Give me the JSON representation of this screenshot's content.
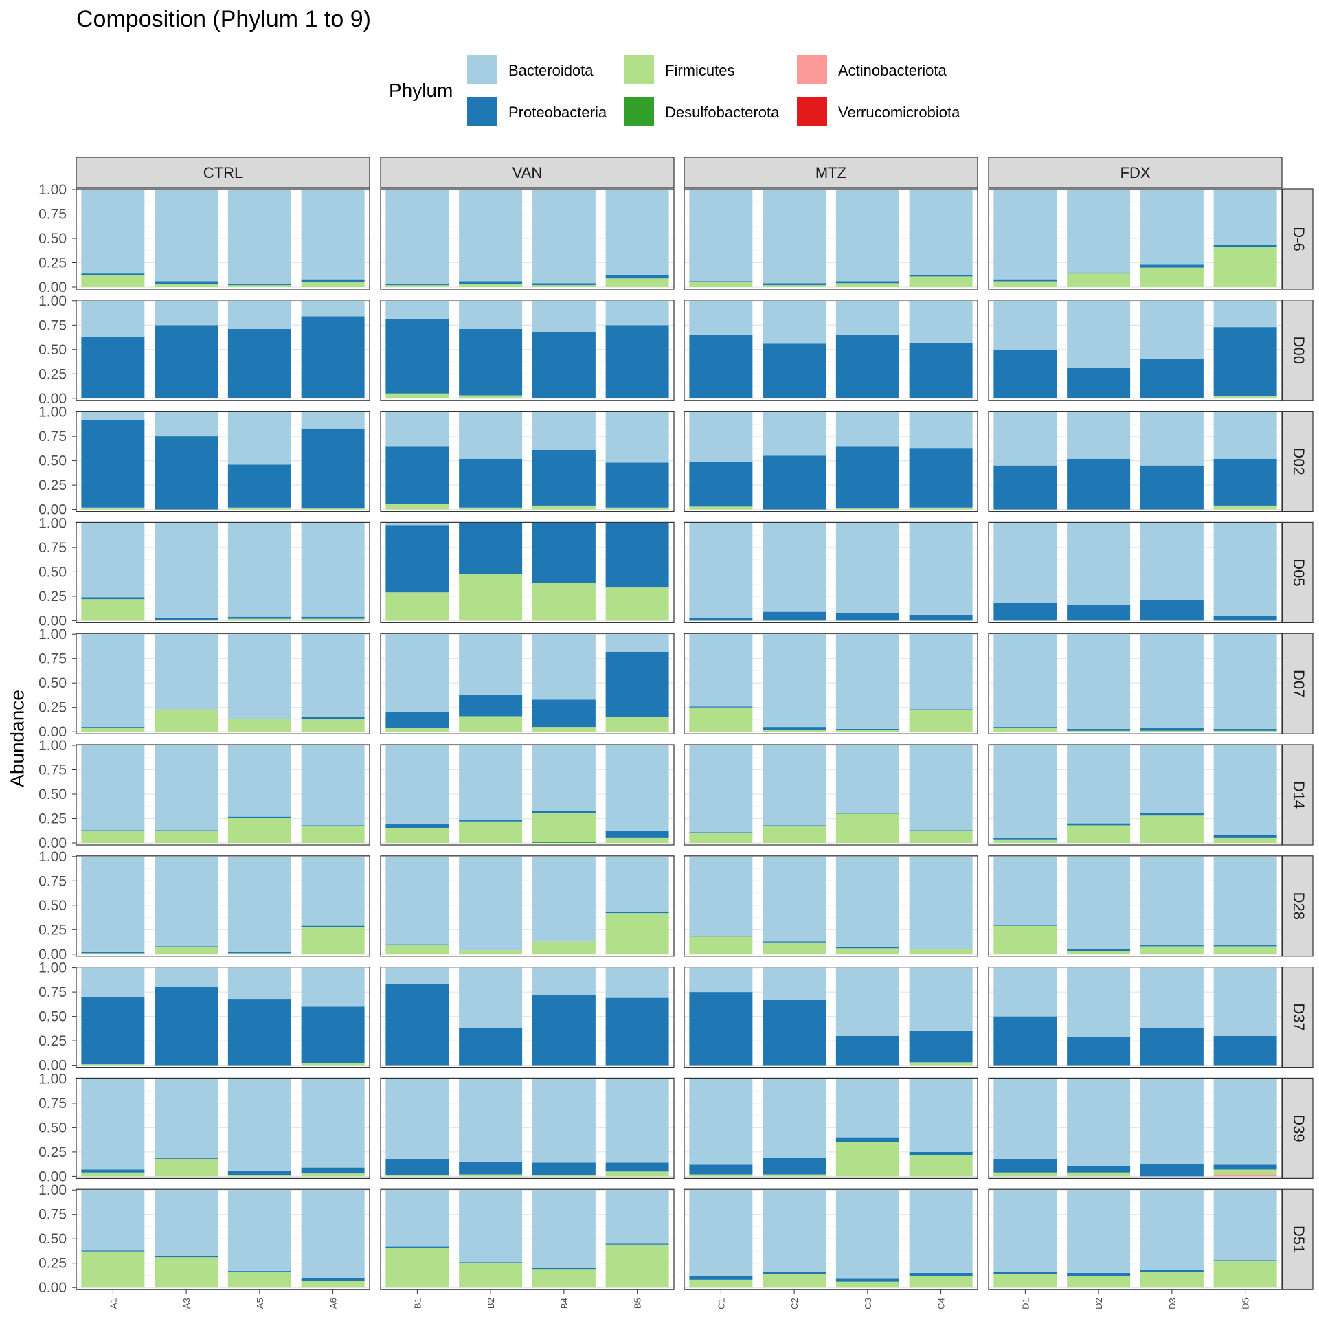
{
  "chart_data": {
    "type": "bar",
    "stacked": true,
    "title": "Composition (Phylum 1 to 9)",
    "xlabel": "",
    "ylabel": "Abundance",
    "ylim": [
      0,
      1
    ],
    "yticks": [
      "0.00",
      "0.25",
      "0.50",
      "0.75",
      "1.00"
    ],
    "grid": true,
    "legend": {
      "title": "Phylum",
      "position": "top",
      "entries": [
        "Bacteroidota",
        "Proteobacteria",
        "Firmicutes",
        "Desulfobacterota",
        "Actinobacteriota",
        "Verrucomicrobiota"
      ]
    },
    "colors": {
      "Bacteroidota": "#a6cee3",
      "Proteobacteria": "#1f78b4",
      "Firmicutes": "#b2df8a",
      "Desulfobacterota": "#33a02c",
      "Actinobacteriota": "#fb9a99",
      "Verrucomicrobiota": "#e31a1c"
    },
    "stack_order_bottom_to_top": [
      "Verrucomicrobiota",
      "Actinobacteriota",
      "Desulfobacterota",
      "Firmicutes",
      "Proteobacteria",
      "Bacteroidota"
    ],
    "facet_columns": [
      {
        "label": "CTRL",
        "samples": [
          "A1",
          "A3",
          "A5",
          "A6"
        ]
      },
      {
        "label": "VAN",
        "samples": [
          "B1",
          "B2",
          "B4",
          "B5"
        ]
      },
      {
        "label": "MTZ",
        "samples": [
          "C1",
          "C2",
          "C3",
          "C4"
        ]
      },
      {
        "label": "FDX",
        "samples": [
          "D1",
          "D2",
          "D3",
          "D5"
        ]
      }
    ],
    "facet_rows": [
      "D-6",
      "D00",
      "D02",
      "D05",
      "D07",
      "D14",
      "D28",
      "D37",
      "D39",
      "D51"
    ],
    "series_keys": [
      "Firmicutes",
      "Proteobacteria",
      "Bacteroidota"
    ],
    "values": {
      "D-6": {
        "CTRL": [
          [
            0.12,
            0.02,
            0.86
          ],
          [
            0.03,
            0.03,
            0.94
          ],
          [
            0.02,
            0.01,
            0.97
          ],
          [
            0.05,
            0.03,
            0.92
          ]
        ],
        "VAN": [
          [
            0.02,
            0.01,
            0.97
          ],
          [
            0.03,
            0.03,
            0.94
          ],
          [
            0.02,
            0.02,
            0.96
          ],
          [
            0.09,
            0.03,
            0.88
          ]
        ],
        "MTZ": [
          [
            0.05,
            0.01,
            0.94
          ],
          [
            0.02,
            0.02,
            0.96
          ],
          [
            0.04,
            0.02,
            0.94
          ],
          [
            0.11,
            0.01,
            0.88
          ]
        ],
        "FDX": [
          [
            0.06,
            0.02,
            0.92
          ],
          [
            0.14,
            0.01,
            0.85
          ],
          [
            0.2,
            0.03,
            0.77
          ],
          [
            0.41,
            0.02,
            0.57
          ]
        ]
      },
      "D00": {
        "CTRL": [
          [
            0.0,
            0.63,
            0.37
          ],
          [
            0.0,
            0.75,
            0.25
          ],
          [
            0.0,
            0.71,
            0.29
          ],
          [
            0.0,
            0.84,
            0.16
          ]
        ],
        "VAN": [
          [
            0.05,
            0.76,
            0.19
          ],
          [
            0.03,
            0.68,
            0.29
          ],
          [
            0.0,
            0.68,
            0.32
          ],
          [
            0.0,
            0.75,
            0.25
          ]
        ],
        "MTZ": [
          [
            0.0,
            0.65,
            0.35
          ],
          [
            0.0,
            0.56,
            0.44
          ],
          [
            0.0,
            0.65,
            0.35
          ],
          [
            0.0,
            0.57,
            0.43
          ]
        ],
        "FDX": [
          [
            0.0,
            0.5,
            0.5
          ],
          [
            0.0,
            0.31,
            0.69
          ],
          [
            0.0,
            0.4,
            0.6
          ],
          [
            0.02,
            0.71,
            0.27
          ]
        ]
      },
      "D02": {
        "CTRL": [
          [
            0.02,
            0.9,
            0.08
          ],
          [
            0.0,
            0.75,
            0.25
          ],
          [
            0.02,
            0.44,
            0.54
          ],
          [
            0.01,
            0.82,
            0.17
          ]
        ],
        "VAN": [
          [
            0.06,
            0.59,
            0.35
          ],
          [
            0.02,
            0.5,
            0.48
          ],
          [
            0.04,
            0.57,
            0.39
          ],
          [
            0.02,
            0.46,
            0.52
          ]
        ],
        "MTZ": [
          [
            0.03,
            0.46,
            0.51
          ],
          [
            0.0,
            0.55,
            0.45
          ],
          [
            0.01,
            0.64,
            0.35
          ],
          [
            0.02,
            0.61,
            0.37
          ]
        ],
        "FDX": [
          [
            0.0,
            0.45,
            0.55
          ],
          [
            0.0,
            0.52,
            0.48
          ],
          [
            0.0,
            0.45,
            0.55
          ],
          [
            0.04,
            0.48,
            0.48
          ]
        ]
      },
      "D05": {
        "CTRL": [
          [
            0.22,
            0.02,
            0.76
          ],
          [
            0.01,
            0.02,
            0.97
          ],
          [
            0.02,
            0.02,
            0.96
          ],
          [
            0.02,
            0.02,
            0.96
          ]
        ],
        "VAN": [
          [
            0.29,
            0.69,
            0.02
          ],
          [
            0.48,
            0.52,
            0.0
          ],
          [
            0.39,
            0.61,
            0.0
          ],
          [
            0.34,
            0.66,
            0.0
          ]
        ],
        "MTZ": [
          [
            0.0,
            0.03,
            0.97
          ],
          [
            0.0,
            0.09,
            0.91
          ],
          [
            0.0,
            0.08,
            0.92
          ],
          [
            0.0,
            0.06,
            0.94
          ]
        ],
        "FDX": [
          [
            0.0,
            0.18,
            0.82
          ],
          [
            0.0,
            0.16,
            0.84
          ],
          [
            0.0,
            0.21,
            0.79
          ],
          [
            0.0,
            0.05,
            0.95
          ]
        ]
      },
      "D07": {
        "CTRL": [
          [
            0.04,
            0.01,
            0.95
          ],
          [
            0.23,
            0.0,
            0.77
          ],
          [
            0.13,
            0.0,
            0.87
          ],
          [
            0.13,
            0.02,
            0.85
          ]
        ],
        "VAN": [
          [
            0.04,
            0.16,
            0.8
          ],
          [
            0.16,
            0.22,
            0.62
          ],
          [
            0.05,
            0.28,
            0.67
          ],
          [
            0.15,
            0.67,
            0.18
          ]
        ],
        "MTZ": [
          [
            0.25,
            0.01,
            0.74
          ],
          [
            0.02,
            0.03,
            0.95
          ],
          [
            0.02,
            0.01,
            0.97
          ],
          [
            0.22,
            0.01,
            0.77
          ]
        ],
        "FDX": [
          [
            0.04,
            0.01,
            0.95
          ],
          [
            0.01,
            0.02,
            0.97
          ],
          [
            0.01,
            0.03,
            0.96
          ],
          [
            0.01,
            0.02,
            0.97
          ]
        ]
      },
      "D14": {
        "CTRL": [
          [
            0.12,
            0.01,
            0.87
          ],
          [
            0.12,
            0.01,
            0.87
          ],
          [
            0.26,
            0.01,
            0.73
          ],
          [
            0.17,
            0.01,
            0.82
          ]
        ],
        "VAN": [
          [
            0.15,
            0.04,
            0.81
          ],
          [
            0.22,
            0.02,
            0.76
          ],
          [
            0.3,
            0.02,
            0.68
          ],
          [
            0.05,
            0.07,
            0.88
          ]
        ],
        "MTZ": [
          [
            0.1,
            0.01,
            0.89
          ],
          [
            0.17,
            0.01,
            0.82
          ],
          [
            0.3,
            0.01,
            0.69
          ],
          [
            0.12,
            0.01,
            0.87
          ]
        ],
        "FDX": [
          [
            0.03,
            0.02,
            0.95
          ],
          [
            0.18,
            0.02,
            0.8
          ],
          [
            0.28,
            0.03,
            0.69
          ],
          [
            0.05,
            0.03,
            0.92
          ]
        ]
      },
      "D28": {
        "CTRL": [
          [
            0.01,
            0.01,
            0.98
          ],
          [
            0.07,
            0.01,
            0.92
          ],
          [
            0.01,
            0.01,
            0.98
          ],
          [
            0.28,
            0.01,
            0.71
          ]
        ],
        "VAN": [
          [
            0.09,
            0.01,
            0.9
          ],
          [
            0.04,
            0.0,
            0.96
          ],
          [
            0.13,
            0.0,
            0.87
          ],
          [
            0.42,
            0.01,
            0.57
          ]
        ],
        "MTZ": [
          [
            0.18,
            0.01,
            0.81
          ],
          [
            0.12,
            0.01,
            0.87
          ],
          [
            0.06,
            0.01,
            0.93
          ],
          [
            0.05,
            0.0,
            0.95
          ]
        ],
        "FDX": [
          [
            0.29,
            0.01,
            0.7
          ],
          [
            0.03,
            0.02,
            0.95
          ],
          [
            0.08,
            0.01,
            0.91
          ],
          [
            0.08,
            0.01,
            0.91
          ]
        ]
      },
      "D37": {
        "CTRL": [
          [
            0.01,
            0.69,
            0.3
          ],
          [
            0.0,
            0.8,
            0.2
          ],
          [
            0.0,
            0.68,
            0.32
          ],
          [
            0.02,
            0.58,
            0.4
          ]
        ],
        "VAN": [
          [
            0.0,
            0.83,
            0.17
          ],
          [
            0.0,
            0.38,
            0.62
          ],
          [
            0.0,
            0.72,
            0.28
          ],
          [
            0.0,
            0.69,
            0.31
          ]
        ],
        "MTZ": [
          [
            0.0,
            0.75,
            0.25
          ],
          [
            0.0,
            0.67,
            0.33
          ],
          [
            0.0,
            0.3,
            0.7
          ],
          [
            0.03,
            0.32,
            0.65
          ]
        ],
        "FDX": [
          [
            0.0,
            0.5,
            0.5
          ],
          [
            0.0,
            0.29,
            0.71
          ],
          [
            0.0,
            0.38,
            0.62
          ],
          [
            0.0,
            0.3,
            0.7
          ]
        ]
      },
      "D39": {
        "CTRL": [
          [
            0.04,
            0.03,
            0.93
          ],
          [
            0.18,
            0.01,
            0.81
          ],
          [
            0.01,
            0.05,
            0.94
          ],
          [
            0.03,
            0.06,
            0.91
          ]
        ],
        "VAN": [
          [
            0.01,
            0.17,
            0.82
          ],
          [
            0.02,
            0.13,
            0.85
          ],
          [
            0.01,
            0.13,
            0.86
          ],
          [
            0.05,
            0.09,
            0.86
          ]
        ],
        "MTZ": [
          [
            0.02,
            0.1,
            0.88
          ],
          [
            0.02,
            0.17,
            0.81
          ],
          [
            0.35,
            0.05,
            0.6
          ],
          [
            0.22,
            0.03,
            0.75
          ]
        ],
        "FDX": [
          [
            0.04,
            0.14,
            0.82
          ],
          [
            0.04,
            0.07,
            0.89
          ],
          [
            0.0,
            0.13,
            0.87
          ],
          [
            0.05,
            0.05,
            0.9
          ]
        ]
      },
      "D51": {
        "CTRL": [
          [
            0.37,
            0.01,
            0.62
          ],
          [
            0.31,
            0.01,
            0.68
          ],
          [
            0.16,
            0.01,
            0.83
          ],
          [
            0.07,
            0.03,
            0.9
          ]
        ],
        "VAN": [
          [
            0.41,
            0.01,
            0.58
          ],
          [
            0.25,
            0.01,
            0.74
          ],
          [
            0.19,
            0.01,
            0.8
          ],
          [
            0.44,
            0.01,
            0.55
          ]
        ],
        "MTZ": [
          [
            0.08,
            0.04,
            0.88
          ],
          [
            0.14,
            0.02,
            0.84
          ],
          [
            0.06,
            0.03,
            0.91
          ],
          [
            0.12,
            0.03,
            0.85
          ]
        ],
        "FDX": [
          [
            0.14,
            0.02,
            0.84
          ],
          [
            0.12,
            0.03,
            0.85
          ],
          [
            0.16,
            0.02,
            0.82
          ],
          [
            0.27,
            0.01,
            0.72
          ]
        ]
      }
    },
    "minor_extras": {
      "FDX|D39|D5": {
        "Actinobacteriota": 0.02
      },
      "VAN|D14|B4": {
        "Desulfobacterota": 0.01
      }
    }
  }
}
